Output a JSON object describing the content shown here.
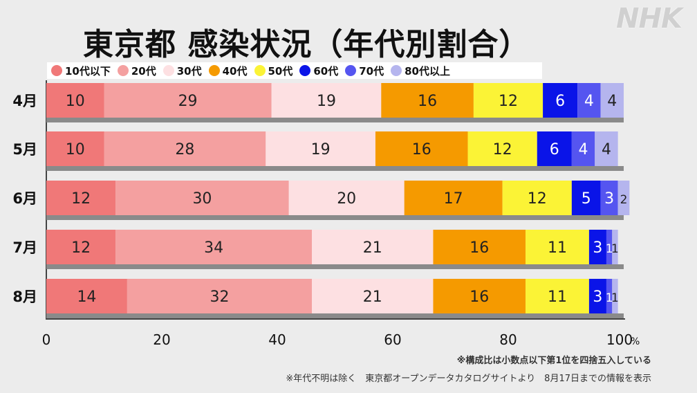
{
  "logo": "NHK",
  "chart_data": {
    "type": "bar",
    "orientation": "horizontal",
    "stacked": true,
    "title": "東京都 感染状況（年代別割合）",
    "categories": [
      "4月",
      "5月",
      "6月",
      "7月",
      "8月"
    ],
    "series": [
      {
        "name": "10代以下",
        "color": "#f07878",
        "values": [
          10,
          10,
          12,
          12,
          14
        ]
      },
      {
        "name": "20代",
        "color": "#f4a0a0",
        "values": [
          29,
          28,
          30,
          34,
          32
        ]
      },
      {
        "name": "30代",
        "color": "#fde0e2",
        "values": [
          19,
          19,
          20,
          21,
          21
        ]
      },
      {
        "name": "40代",
        "color": "#f59a00",
        "values": [
          16,
          16,
          17,
          16,
          16
        ]
      },
      {
        "name": "50代",
        "color": "#fbf336",
        "values": [
          12,
          12,
          12,
          11,
          11
        ]
      },
      {
        "name": "60代",
        "color": "#0a14e8",
        "values": [
          6,
          6,
          5,
          3,
          3
        ]
      },
      {
        "name": "70代",
        "color": "#5555f0",
        "values": [
          4,
          4,
          3,
          1,
          1
        ]
      },
      {
        "name": "80代以上",
        "color": "#b5b5ee",
        "values": [
          4,
          4,
          2,
          1,
          1
        ]
      }
    ],
    "xlim": [
      0,
      100
    ],
    "xticks": [
      "0",
      "20",
      "40",
      "60",
      "80",
      "100"
    ],
    "x_unit": "%",
    "legend_position": "top"
  },
  "notes": {
    "rounding": "※構成比は小数点以下第1位を四捨五入している",
    "source": "※年代不明は除く　東京都オープンデータカタログサイトより　8月17日までの情報を表示"
  }
}
